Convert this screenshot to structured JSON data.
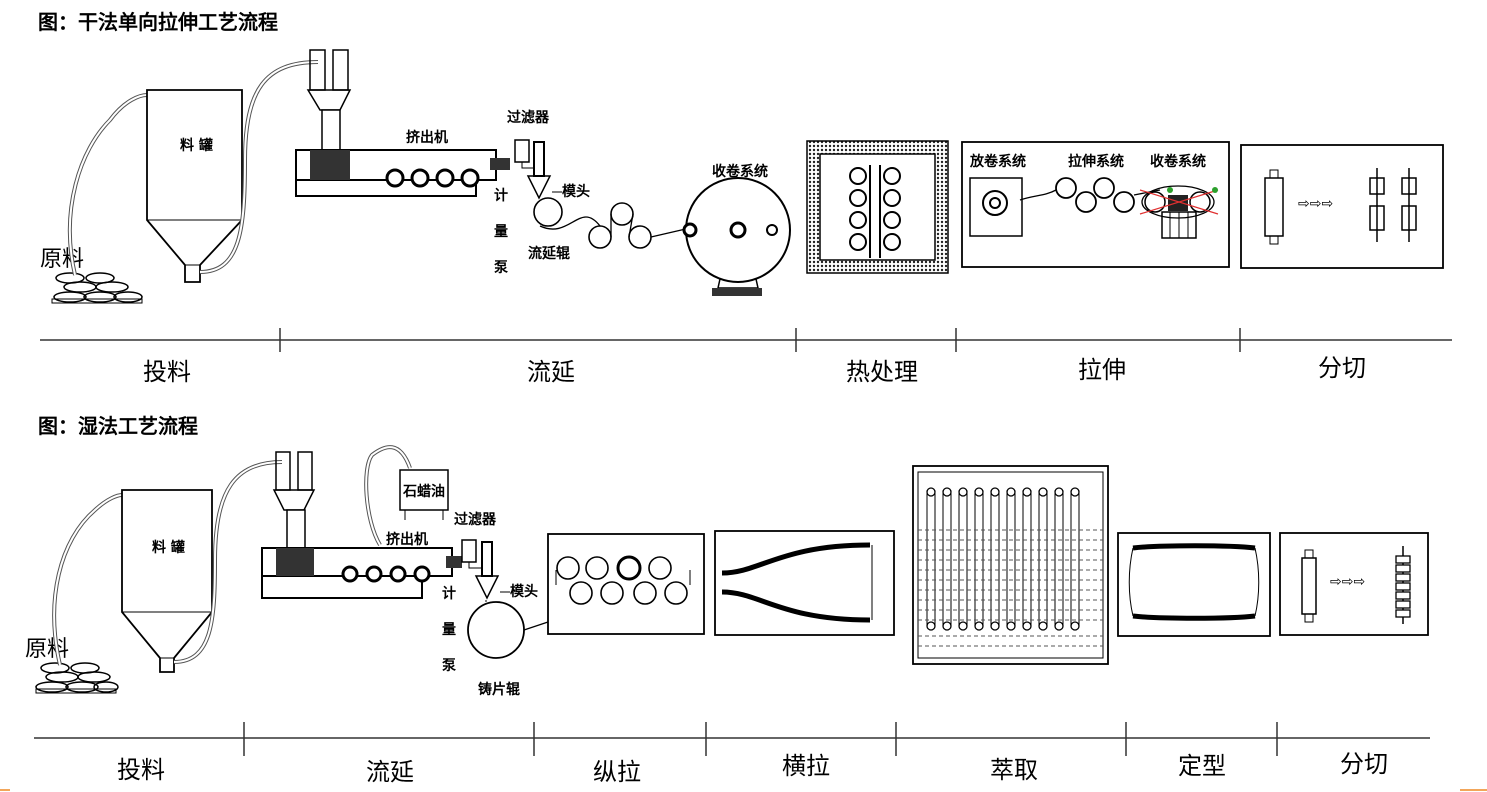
{
  "dry": {
    "title": "图：干法单向拉伸工艺流程",
    "raw_material": "原料",
    "hopper": "料 罐",
    "extruder": "挤出机",
    "filter": "过滤器",
    "pump": [
      "计",
      "量",
      "泵"
    ],
    "die": "模头",
    "cast_roll": "流延辊",
    "winder": "收卷系统",
    "unwind": "放卷系统",
    "stretch_sys": "拉伸系统",
    "rewind": "收卷系统",
    "stages": [
      "投料",
      "流延",
      "热处理",
      "拉伸",
      "分切"
    ]
  },
  "wet": {
    "title": "图：湿法工艺流程",
    "raw_material": "原料",
    "hopper": "料 罐",
    "paraffin": "石蜡油",
    "extruder": "挤出机",
    "filter": "过滤器",
    "pump": [
      "计",
      "量",
      "泵"
    ],
    "die": "模头",
    "cast_roll": "铸片辊",
    "stages": [
      "投料",
      "流延",
      "纵拉",
      "横拉",
      "萃取",
      "定型",
      "分切"
    ]
  }
}
